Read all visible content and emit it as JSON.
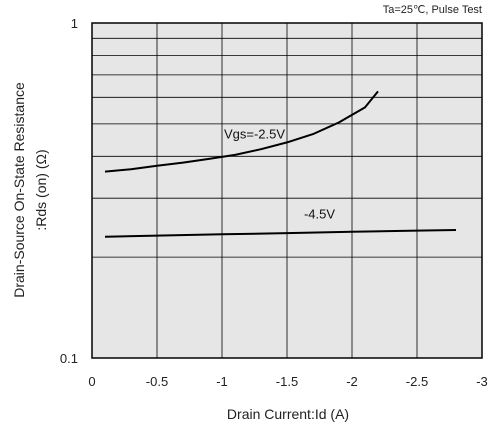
{
  "chart_data": {
    "type": "line",
    "title": "",
    "annotation": "Ta=25℃, Pulse Test",
    "xlabel": "Drain Current:Id  (A)",
    "ylabel_line1": "Drain-Source On-State Resistance",
    "ylabel_line2": ":Rds (on) (Ω)",
    "xlim": [
      0,
      -3
    ],
    "ylim": [
      0.1,
      1
    ],
    "yscale": "log",
    "grid": true,
    "plot_background": "#e6e6e6",
    "line_color": "#000000",
    "x_ticks": [
      {
        "value": 0,
        "label": "0"
      },
      {
        "value": -0.5,
        "label": "-0.5"
      },
      {
        "value": -1,
        "label": "-1"
      },
      {
        "value": -1.5,
        "label": "-1.5"
      },
      {
        "value": -2,
        "label": "-2"
      },
      {
        "value": -2.5,
        "label": "-2.5"
      },
      {
        "value": -3,
        "label": "-3"
      }
    ],
    "y_ticks": [
      {
        "value": 0.1,
        "label": "0.1"
      },
      {
        "value": 1,
        "label": "1"
      }
    ],
    "series": [
      {
        "label": "Vgs=-2.5V",
        "x": [
          -0.1,
          -0.3,
          -0.5,
          -0.7,
          -0.9,
          -1.1,
          -1.3,
          -1.5,
          -1.7,
          -1.9,
          -2.1,
          -2.2
        ],
        "y": [
          0.36,
          0.366,
          0.375,
          0.383,
          0.393,
          0.404,
          0.42,
          0.44,
          0.466,
          0.505,
          0.56,
          0.625
        ]
      },
      {
        "label": "-4.5V",
        "x": [
          -0.1,
          -0.5,
          -1.0,
          -1.5,
          -2.0,
          -2.5,
          -2.8
        ],
        "y": [
          0.23,
          0.232,
          0.234,
          0.236,
          0.238,
          0.24,
          0.241
        ]
      }
    ]
  }
}
